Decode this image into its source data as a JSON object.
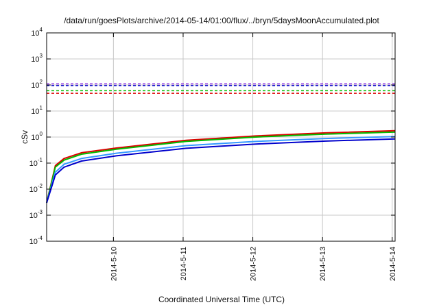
{
  "chart_data": {
    "type": "line",
    "title": "/data/run/goesPlots/archive/2014-05-14/01:00/flux/../bryn/5daysMoonAccumulated.plot",
    "xlabel": "Coordinated Universal Time (UTC)",
    "ylabel": "cSv",
    "y_scale": "log",
    "ylim": [
      0.0001,
      10000
    ],
    "xlim": [
      "2014-05-09T01:00",
      "2014-05-14T01:00"
    ],
    "x_ticks": [
      "2014-5-10",
      "2014-5-11",
      "2014-5-12",
      "2014-5-13",
      "2014-5-14"
    ],
    "x_tick_values": [
      "2014-05-10T00:00",
      "2014-05-11T00:00",
      "2014-05-12T00:00",
      "2014-05-13T00:00",
      "2014-05-14T00:00"
    ],
    "y_ticks": [
      {
        "base": "10",
        "exp": "-4",
        "value": 0.0001
      },
      {
        "base": "10",
        "exp": "-3",
        "value": 0.001
      },
      {
        "base": "10",
        "exp": "-2",
        "value": 0.01
      },
      {
        "base": "10",
        "exp": "-1",
        "value": 0.1
      },
      {
        "base": "10",
        "exp": "0",
        "value": 1
      },
      {
        "base": "10",
        "exp": "1",
        "value": 10
      },
      {
        "base": "10",
        "exp": "2",
        "value": 100
      },
      {
        "base": "10",
        "exp": "3",
        "value": 1000
      },
      {
        "base": "10",
        "exp": "4",
        "value": 10000
      }
    ],
    "grid": true,
    "thresholds": [
      {
        "color": "#8a2be2",
        "value": 110
      },
      {
        "color": "#0000cc",
        "value": 95
      },
      {
        "color": "#00bb00",
        "value": 60
      },
      {
        "color": "#dd0000",
        "value": 48
      }
    ],
    "series": [
      {
        "color": "#dd0000",
        "x": [
          "2014-05-09T01:00",
          "2014-05-09T04:00",
          "2014-05-09T07:00",
          "2014-05-09T13:00",
          "2014-05-10T01:00",
          "2014-05-11T01:00",
          "2014-05-12T01:00",
          "2014-05-13T01:00",
          "2014-05-14T01:00"
        ],
        "values": [
          0.003,
          0.08,
          0.15,
          0.25,
          0.38,
          0.75,
          1.1,
          1.45,
          1.75
        ]
      },
      {
        "color": "#00bb00",
        "x": [
          "2014-05-09T01:00",
          "2014-05-09T04:00",
          "2014-05-09T07:00",
          "2014-05-09T13:00",
          "2014-05-10T01:00",
          "2014-05-11T01:00",
          "2014-05-12T01:00",
          "2014-05-13T01:00",
          "2014-05-14T01:00"
        ],
        "values": [
          0.003,
          0.07,
          0.13,
          0.22,
          0.34,
          0.68,
          1.0,
          1.3,
          1.55
        ]
      },
      {
        "color": "#3399ff",
        "x": [
          "2014-05-09T01:00",
          "2014-05-09T04:00",
          "2014-05-09T07:00",
          "2014-05-09T13:00",
          "2014-05-10T01:00",
          "2014-05-11T01:00",
          "2014-05-12T01:00",
          "2014-05-13T01:00",
          "2014-05-14T01:00"
        ],
        "values": [
          0.003,
          0.045,
          0.09,
          0.15,
          0.24,
          0.47,
          0.68,
          0.88,
          1.05
        ]
      },
      {
        "color": "#0000cc",
        "x": [
          "2014-05-09T01:00",
          "2014-05-09T04:00",
          "2014-05-09T07:00",
          "2014-05-09T13:00",
          "2014-05-10T01:00",
          "2014-05-11T01:00",
          "2014-05-12T01:00",
          "2014-05-13T01:00",
          "2014-05-14T01:00"
        ],
        "values": [
          0.003,
          0.035,
          0.07,
          0.12,
          0.19,
          0.37,
          0.54,
          0.7,
          0.85
        ]
      }
    ]
  }
}
